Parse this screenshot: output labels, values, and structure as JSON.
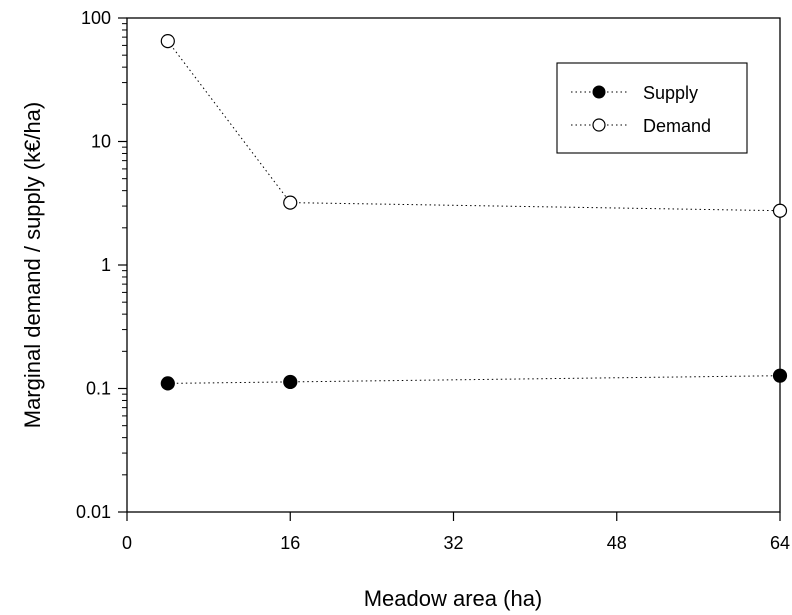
{
  "chart_data": {
    "type": "scatter",
    "title": "",
    "xlabel": "Meadow area (ha)",
    "ylabel": "Marginal demand / supply (k€/ha)",
    "xlim": [
      0,
      64
    ],
    "ylim": [
      0.01,
      100
    ],
    "yscale": "log",
    "xticks": [
      "0",
      "16",
      "32",
      "48",
      "64"
    ],
    "yticks": [
      "0.01",
      "0.1",
      "1",
      "10",
      "100"
    ],
    "grid": false,
    "legend_position": "top-right",
    "series": [
      {
        "name": "Supply",
        "marker": "filled-circle",
        "line": "dotted",
        "color": "#000000",
        "x": [
          4,
          16,
          64
        ],
        "y": [
          0.11,
          0.113,
          0.127
        ]
      },
      {
        "name": "Demand",
        "marker": "open-circle",
        "line": "dotted",
        "color": "#000000",
        "x": [
          4,
          16,
          64
        ],
        "y": [
          65,
          3.2,
          2.75
        ]
      }
    ]
  }
}
